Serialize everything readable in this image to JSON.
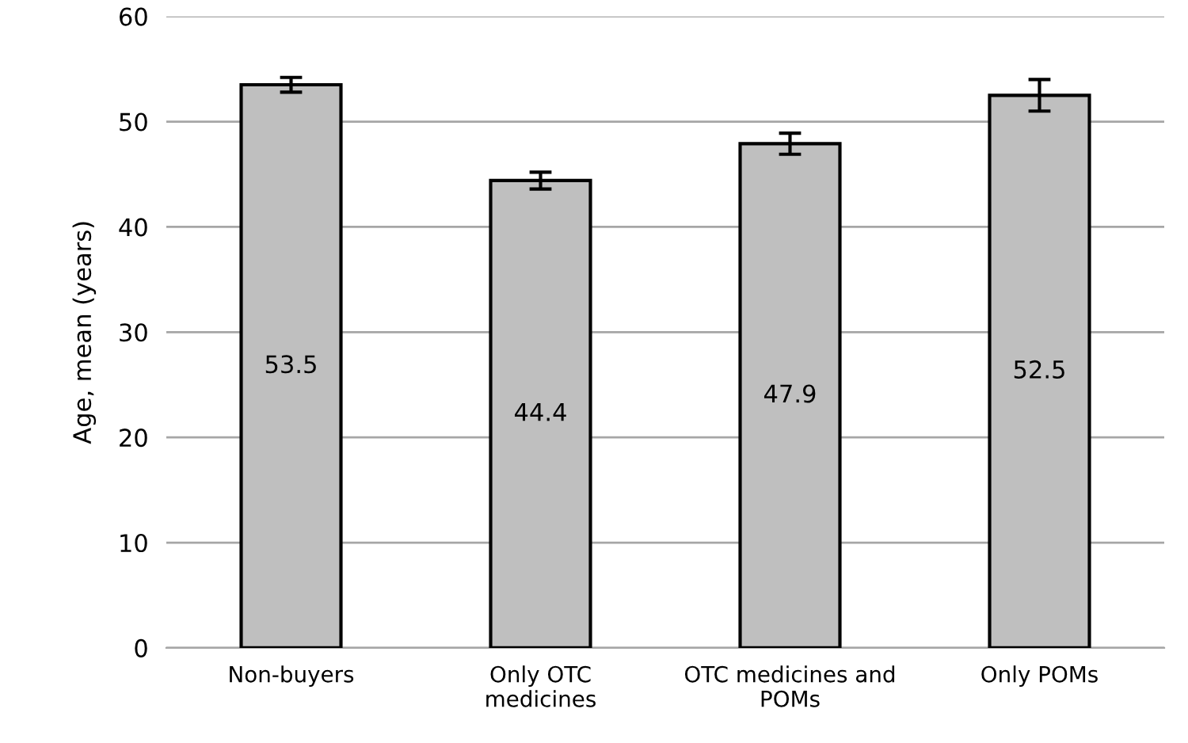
{
  "chart_data": {
    "type": "bar",
    "ylabel": "Age, mean (years)",
    "categories": [
      "Non-buyers",
      "Only OTC\nmedicines",
      "OTC medicines and\nPOMs",
      "Only POMs"
    ],
    "values": [
      53.5,
      44.4,
      47.9,
      52.5
    ],
    "errors": [
      0.7,
      0.8,
      1.0,
      1.5
    ],
    "color": "#bfbfbf",
    "ylim": [
      0,
      60
    ],
    "yticks": [
      0,
      10,
      20,
      30,
      40,
      50,
      60
    ],
    "grid": "y",
    "data_labels": true
  }
}
